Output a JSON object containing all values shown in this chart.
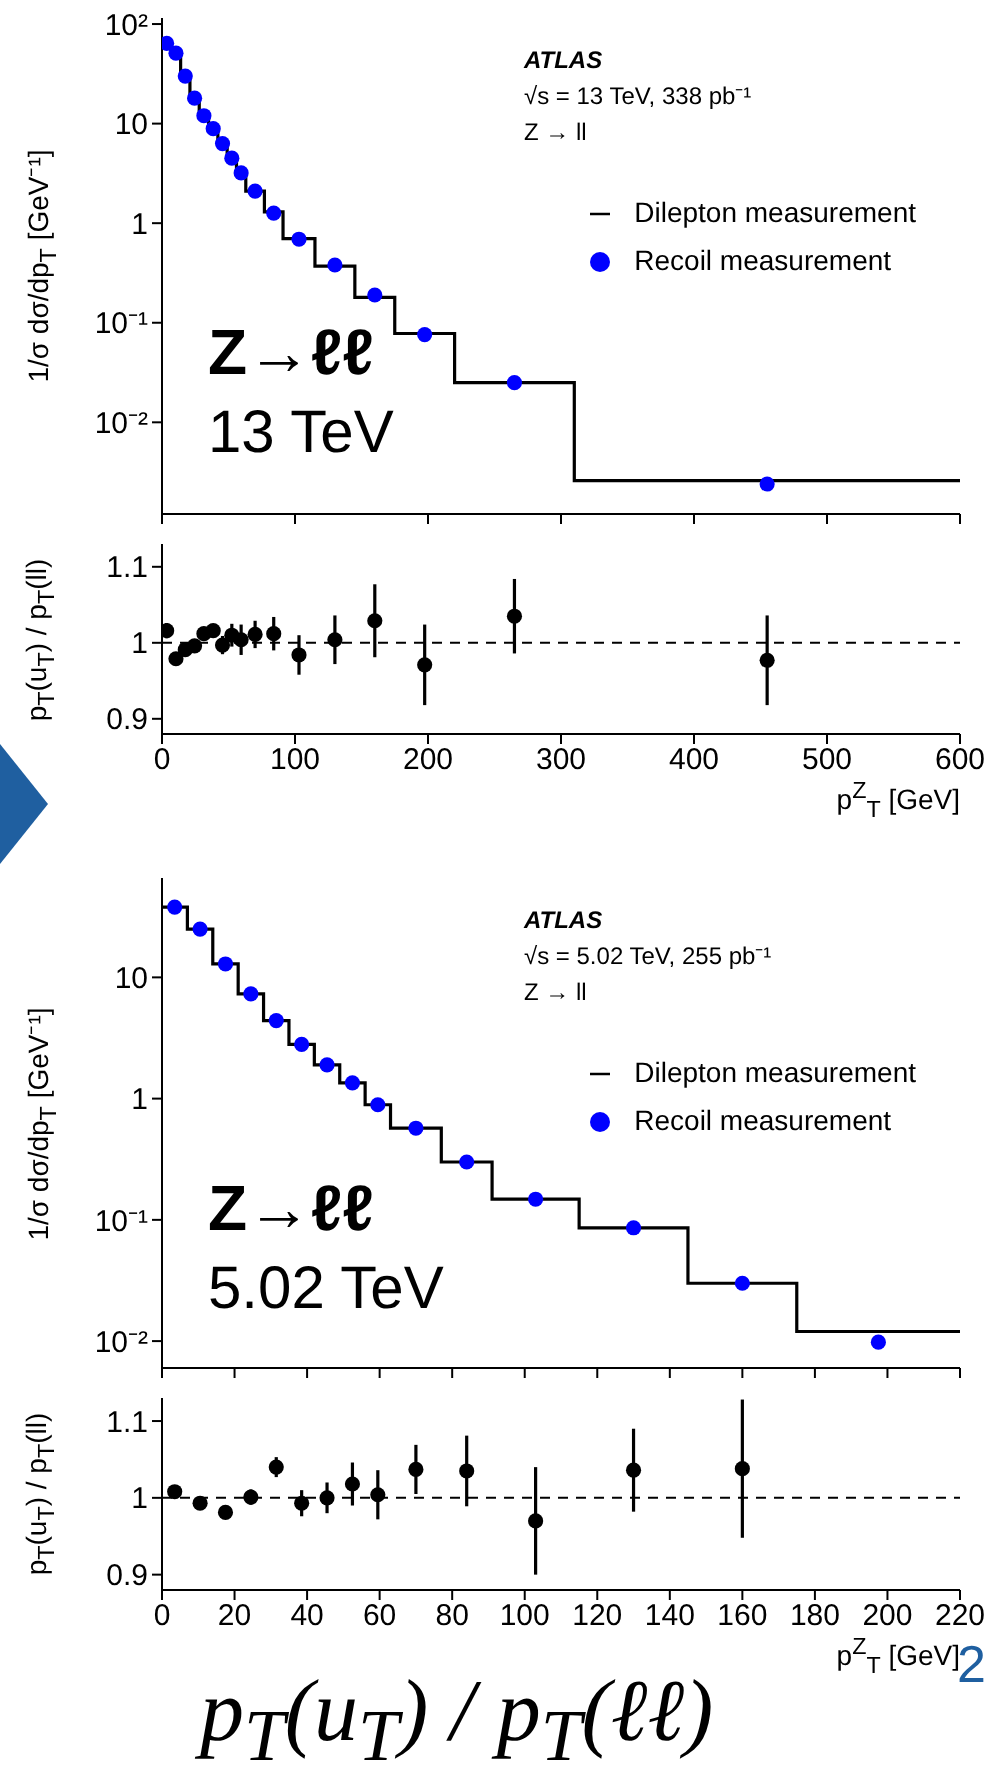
{
  "chart_data": [
    {
      "type": "scatter",
      "xlim": [
        0,
        600
      ],
      "xticks": [
        0,
        100,
        200,
        300,
        400,
        500,
        600
      ],
      "tick_labels": "y",
      "log": true,
      "ylim": [
        0.0012,
        115
      ],
      "yticks": [
        {
          "value": 0.01,
          "label": "10⁻²"
        },
        {
          "value": 0.1,
          "label": "10⁻¹"
        },
        1,
        10,
        {
          "value": 100,
          "label": "10²"
        }
      ],
      "ylabel": "1/σ dσ/dp$_{T}$ [GeV⁻¹]",
      "legend": "top right",
      "marker": "circle",
      "series": [
        {
          "name": "Dilepton measurement",
          "type": "histogram",
          "color": "#000000",
          "bins": [
            0,
            7,
            14,
            21,
            28,
            35,
            42,
            49,
            56,
            63,
            77,
            91,
            115,
            145,
            175,
            220,
            310,
            600
          ],
          "values": [
            64,
            51,
            30,
            18,
            12,
            8.9,
            6.3,
            4.5,
            3.2,
            2.1,
            1.3,
            0.7,
            0.37,
            0.18,
            0.078,
            0.025,
            0.0026
          ]
        },
        {
          "name": "Recoil measurement",
          "color": "#0000ff",
          "x": [
            3.5,
            10.5,
            17.5,
            24.5,
            31.5,
            38.5,
            45.5,
            52.5,
            59.5,
            70,
            84,
            103,
            130,
            160,
            197.5,
            265,
            455
          ],
          "values": [
            64,
            51,
            30,
            18,
            12,
            8.9,
            6.3,
            4.5,
            3.2,
            2.1,
            1.26,
            0.69,
            0.38,
            0.19,
            0.076,
            0.025,
            0.0024
          ]
        }
      ],
      "annotations": [
        "ATLAS",
        "√s = 13 TeV, 338 pb⁻¹",
        "Z → ll",
        "Z→ℓℓ",
        "13 TeV"
      ]
    },
    {
      "type": "scatter",
      "xlim": [
        0,
        600
      ],
      "xticks": [
        0,
        100,
        200,
        300,
        400,
        500,
        600
      ],
      "ylim": [
        0.88,
        1.13
      ],
      "yticks": [
        0.9,
        1,
        1.1
      ],
      "xlabel": "p$^{Z}$$_{T}$ [GeV]",
      "ylabel": "p$_{T}$(u$_{T}$) / p$_{T}$(ll)",
      "marker": "circle",
      "color": "#000000",
      "x": [
        3.5,
        10.5,
        17.5,
        24.5,
        31.5,
        38.5,
        45.5,
        52.5,
        59.5,
        70,
        84,
        103,
        130,
        160,
        197.5,
        265,
        455
      ],
      "values": [
        1.016,
        0.979,
        0.991,
        0.996,
        1.012,
        1.016,
        0.997,
        1.01,
        1.004,
        1.011,
        1.012,
        0.984,
        1.004,
        1.029,
        0.971,
        1.035,
        0.977
      ],
      "errors": [
        0.01,
        0.008,
        0.008,
        0.008,
        0.008,
        0.008,
        0.012,
        0.015,
        0.02,
        0.018,
        0.022,
        0.026,
        0.032,
        0.048,
        0.053,
        0.049,
        0.059
      ],
      "ref_lines": [
        {
          "axis": "y",
          "value": 1,
          "line_style": "dashed",
          "color": "#000000"
        }
      ]
    },
    {
      "type": "scatter",
      "xlim": [
        0,
        220
      ],
      "xticks": [
        0,
        20,
        40,
        60,
        80,
        100,
        120,
        140,
        160,
        180,
        200,
        220
      ],
      "tick_labels": "y",
      "log": true,
      "ylim": [
        0.006,
        66
      ],
      "yticks": [
        {
          "value": 0.01,
          "label": "10⁻²"
        },
        {
          "value": 0.1,
          "label": "10⁻¹"
        },
        1,
        10
      ],
      "ylabel": "1/σ dσ/dp$_{T}$ [GeV⁻¹]",
      "legend": "top right",
      "marker": "circle",
      "series": [
        {
          "name": "Dilepton measurement",
          "type": "histogram",
          "color": "#000000",
          "bins": [
            0,
            7,
            14,
            21,
            28,
            35,
            42,
            49,
            56,
            63,
            77,
            91,
            115,
            145,
            175,
            220
          ],
          "values": [
            38,
            25,
            12.9,
            7.3,
            4.4,
            2.8,
            1.9,
            1.35,
            0.89,
            0.57,
            0.3,
            0.148,
            0.086,
            0.03,
            0.012
          ]
        },
        {
          "name": "Recoil measurement",
          "color": "#0000ff",
          "x": [
            3.5,
            10.5,
            17.5,
            24.5,
            31.5,
            38.5,
            45.5,
            52.5,
            59.5,
            70,
            84,
            103,
            130,
            160,
            197.5
          ],
          "values": [
            38,
            25,
            12.9,
            7.3,
            4.4,
            2.8,
            1.9,
            1.35,
            0.89,
            0.57,
            0.3,
            0.148,
            0.086,
            0.03,
            0.0098
          ]
        }
      ],
      "annotations": [
        "ATLAS",
        "√s = 5.02 TeV, 255 pb⁻¹",
        "Z → ll",
        "Z→ℓℓ",
        "5.02 TeV"
      ]
    },
    {
      "type": "scatter",
      "xlim": [
        0,
        220
      ],
      "xticks": [
        0,
        20,
        40,
        60,
        80,
        100,
        120,
        140,
        160,
        180,
        200,
        220
      ],
      "ylim": [
        0.88,
        1.13
      ],
      "yticks": [
        0.9,
        1,
        1.1
      ],
      "xlabel": "p$^{Z}$$_{T}$ [GeV]",
      "ylabel": "p$_{T}$(u$_{T}$) / p$_{T}$(ll)",
      "marker": "circle",
      "color": "#000000",
      "x": [
        3.5,
        10.5,
        17.5,
        24.5,
        31.5,
        38.5,
        45.5,
        52.5,
        59.5,
        70,
        84,
        103,
        130,
        160
      ],
      "values": [
        1.008,
        0.993,
        0.981,
        1.001,
        1.04,
        0.993,
        1.0,
        1.018,
        1.004,
        1.037,
        1.035,
        0.97,
        1.036,
        1.038
      ],
      "errors": [
        0.003,
        0.004,
        0.004,
        0.01,
        0.013,
        0.017,
        0.02,
        0.028,
        0.032,
        0.032,
        0.046,
        0.07,
        0.054,
        0.09
      ],
      "ref_lines": [
        {
          "axis": "y",
          "value": 1,
          "line_style": "dashed",
          "color": "#000000"
        }
      ],
      "annotations": [
        "p$_{T}$(u$_{T}$) / p$_{T}$(ℓℓ)",
        "2"
      ]
    }
  ]
}
